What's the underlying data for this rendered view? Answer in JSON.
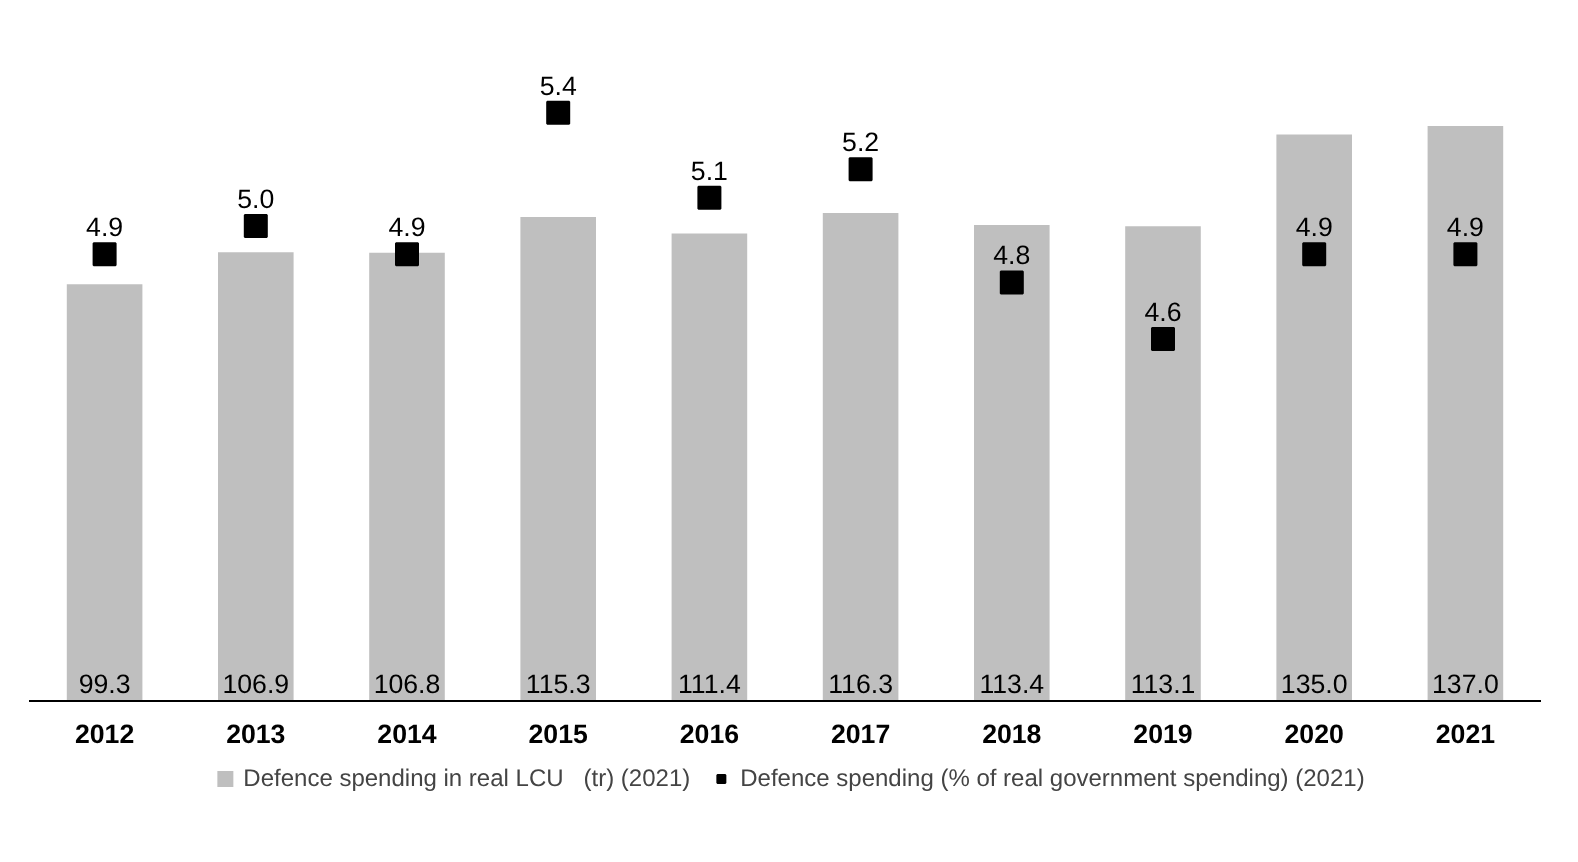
{
  "chart_data": {
    "type": "bar",
    "categories": [
      "2012",
      "2013",
      "2014",
      "2015",
      "2016",
      "2017",
      "2018",
      "2019",
      "2020",
      "2021"
    ],
    "series": [
      {
        "name": "Defence spending in real LCU   (tr) (2021)",
        "color": "#bfbfbf",
        "values": [
          99.3,
          106.9,
          106.8,
          115.3,
          111.4,
          116.3,
          113.4,
          113.1,
          135.0,
          137.0
        ],
        "value_labels": [
          "99.3",
          "106.9",
          "106.8",
          "115.3",
          "111.4",
          "116.3",
          "113.4",
          "113.1",
          "135.0",
          "137.0"
        ]
      },
      {
        "name": "Defence spending (% of real government spending) (2021)",
        "color": "#000000",
        "type": "scatter",
        "axis": "y2",
        "marker": "square",
        "values": [
          4.9,
          5.0,
          4.9,
          5.4,
          5.1,
          5.2,
          4.8,
          4.6,
          4.9,
          4.9
        ],
        "value_labels": [
          "4.9",
          "5.0",
          "4.9",
          "5.4",
          "5.1",
          "5.2",
          "4.8",
          "4.6",
          "4.9",
          "4.9"
        ]
      }
    ],
    "grid": false,
    "legend": "bottom",
    "tick_labels": "x"
  }
}
